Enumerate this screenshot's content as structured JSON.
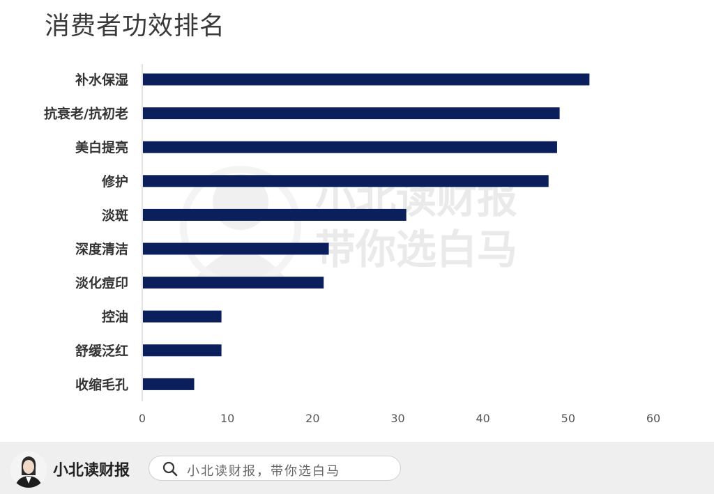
{
  "chart_data": {
    "type": "bar",
    "orientation": "horizontal",
    "title": "消费者功效排名",
    "categories": [
      "补水保湿",
      "抗衰老/抗初老",
      "美白提亮",
      "修护",
      "淡斑",
      "深度清洁",
      "淡化痘印",
      "控油",
      "舒缓泛红",
      "收缩毛孔"
    ],
    "values": [
      52.5,
      49,
      48.7,
      47.7,
      31,
      21.9,
      21.3,
      9.3,
      9.3,
      6.1
    ],
    "xlim": [
      0,
      60
    ],
    "xticks": [
      "0",
      "10",
      "20",
      "30",
      "40",
      "50",
      "60"
    ],
    "grid": false,
    "bar_color": "#0b1f5c"
  },
  "watermark": {
    "line1": "小北读财报",
    "line2": "带你选白马"
  },
  "footer": {
    "brand_name": "小北读财报",
    "search_text": "小北读财报，带你选白马",
    "search_icon": "search-icon",
    "avatar_icon": "avatar"
  }
}
